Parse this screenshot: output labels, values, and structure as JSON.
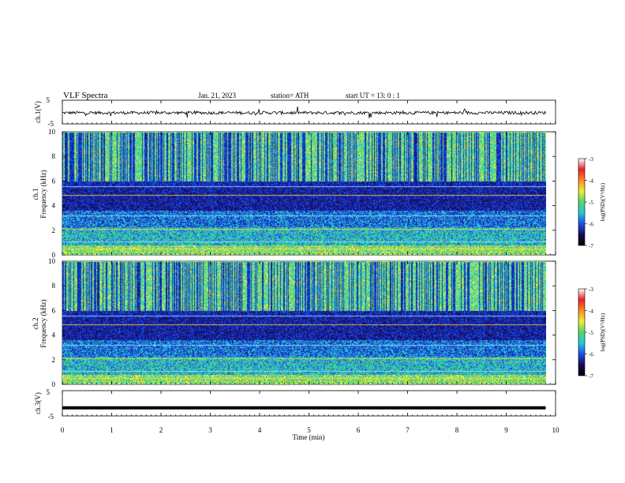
{
  "header": {
    "title": "VLF  Spectra",
    "date": "Jan. 21, 2023",
    "station": "station= ATH",
    "start": "start  UT  =    13: 0   : 1"
  },
  "chart_data": [
    {
      "type": "line",
      "panel": "ch1-waveform",
      "ylabel": "ch.1(V)",
      "ylim": [
        -5,
        5
      ],
      "yticks": [
        "5",
        "-5"
      ],
      "xlim": [
        0,
        10
      ],
      "series": [
        {
          "values_description_only": false,
          "x": [
            0,
            9.8
          ],
          "y": [
            -0.3,
            -0.3
          ]
        }
      ]
    },
    {
      "type": "heatmap",
      "panel": "ch1-spectrogram",
      "ylabel": "ch.1\nFrequency  (kHz)",
      "ylim": [
        0,
        10
      ],
      "yticks": [
        "0",
        "2",
        "4",
        "6",
        "8",
        "10"
      ],
      "xlim": [
        0,
        9.8
      ],
      "zlim": [
        -7,
        -3
      ]
    },
    {
      "type": "heatmap",
      "panel": "ch2-spectrogram",
      "ylabel": "ch.2\nFrequency  (kHz)",
      "ylim": [
        0,
        10
      ],
      "yticks": [
        "0",
        "2",
        "4",
        "6",
        "8",
        "10"
      ],
      "xlim": [
        0,
        9.8
      ],
      "zlim": [
        -7,
        -3
      ]
    },
    {
      "type": "line",
      "panel": "ch3-waveform",
      "ylabel": "ch.3(V)",
      "ylim": [
        -5,
        5
      ],
      "yticks": [
        "5",
        "-5"
      ],
      "xlim": [
        0,
        10
      ],
      "series": [
        {
          "x": [
            0,
            9.8
          ],
          "y": [
            -1.8,
            -1.8
          ]
        }
      ]
    }
  ],
  "xaxis": {
    "label": "Time  (min)",
    "ticks": [
      "0",
      "1",
      "2",
      "3",
      "4",
      "5",
      "6",
      "7",
      "8",
      "9",
      "10"
    ]
  },
  "colorbar": {
    "label": "log(PSD)(V²/Hz)",
    "ticks": [
      "-3",
      "-4",
      "-5",
      "-6",
      "-7"
    ]
  },
  "colors": {
    "axis": "#000000",
    "background": "#ffffff",
    "colormap": [
      "#1a0a55",
      "#0f1e9e",
      "#1f4fe8",
      "#25c8dd",
      "#4ed86a",
      "#ecef37",
      "#ff8a1e",
      "#e8202a",
      "#ffffff"
    ]
  }
}
